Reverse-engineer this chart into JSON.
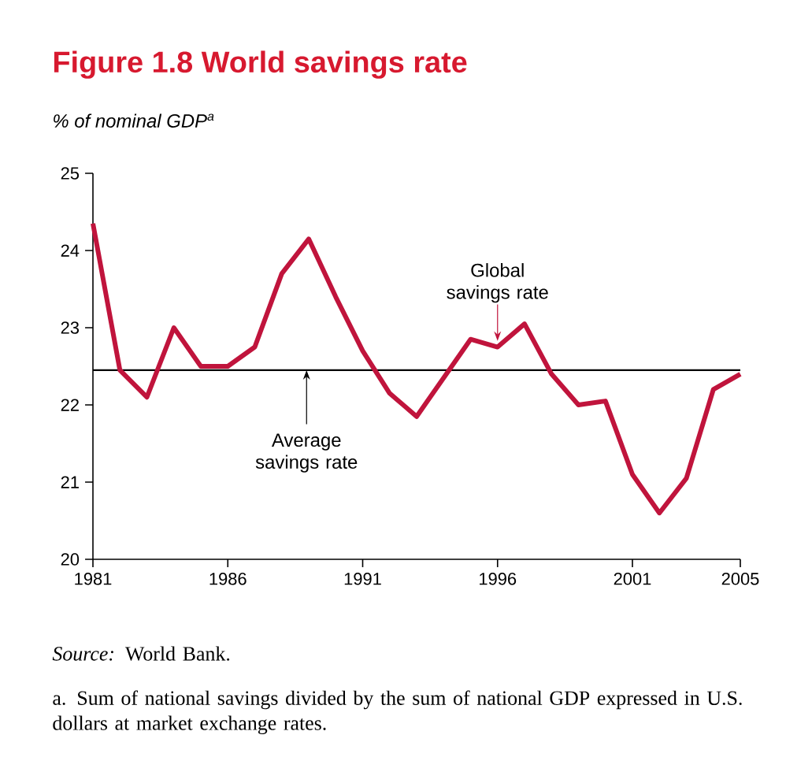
{
  "chart_data": {
    "type": "line",
    "title": "Figure 1.8  World savings rate",
    "ylabel": "% of nominal GDP$^{a}$",
    "x": [
      1981,
      1982,
      1983,
      1984,
      1985,
      1986,
      1987,
      1988,
      1989,
      1990,
      1991,
      1992,
      1993,
      1994,
      1995,
      1996,
      1997,
      1998,
      1999,
      2000,
      2001,
      2002,
      2003,
      2004,
      2005
    ],
    "series": [
      {
        "color": "#c0143c",
        "values": [
          24.35,
          22.45,
          22.1,
          23.0,
          22.5,
          22.5,
          22.75,
          23.7,
          24.15,
          23.4,
          22.7,
          22.15,
          21.85,
          22.35,
          22.85,
          22.75,
          23.05,
          22.4,
          22.0,
          22.05,
          21.1,
          20.6,
          21.05,
          22.2,
          22.4
        ]
      }
    ],
    "xlim": [
      1981,
      2005
    ],
    "xticks": [
      1981,
      1986,
      1991,
      1996,
      2001,
      2005
    ],
    "ylim": [
      20,
      25
    ],
    "yticks": [
      20,
      21,
      22,
      23,
      24,
      25
    ],
    "ref_lines": [
      {
        "axis": "y",
        "value": 22.45,
        "label": "Average savings rate",
        "color": "#000000"
      }
    ],
    "annotations": [
      {
        "text": "Global savings rate",
        "x": 1996,
        "y": 22.75
      },
      "*Source:* World Bank.",
      "a. Sum of national savings divided by the sum of national GDP expressed in U.S. dollars at market exchange rates."
    ],
    "grid": false,
    "marker": "none",
    "line_style": "solid"
  }
}
